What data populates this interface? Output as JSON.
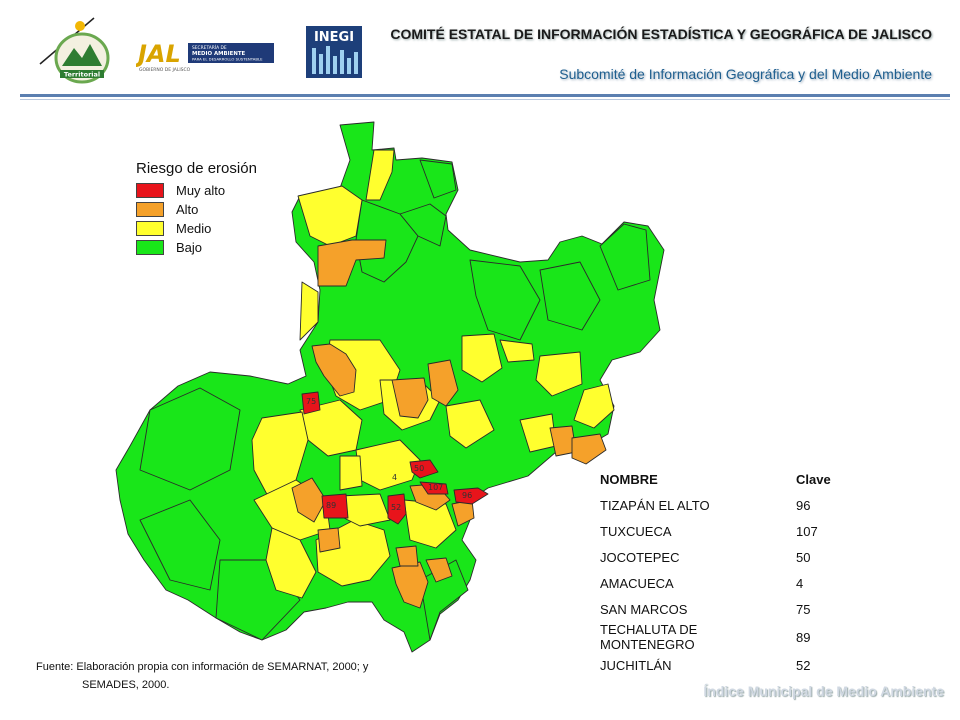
{
  "header": {
    "title": "COMITÉ ESTATAL DE INFORMACIÓN ESTADÍSTICA Y GEOGRÁFICA DE JALISCO",
    "subtitle": "Subcomité de Información Geográfica y del Medio Ambiente"
  },
  "logos": {
    "territorial_text": "Territorial",
    "jalisco_text": "JAL",
    "jalisco_caption": "GOBIERNO DE JALISCO",
    "semades_line1": "SECRETARÍA DE",
    "semades_line2": "MEDIO AMBIENTE",
    "semades_line3": "PARA EL DESARROLLO SUSTENTABLE",
    "inegi_text": "INEGI"
  },
  "legend": {
    "title": "Riesgo de erosión",
    "items": [
      {
        "label": "Muy alto",
        "color": "#e8141b"
      },
      {
        "label": "Alto",
        "color": "#f5a12a"
      },
      {
        "label": "Medio",
        "color": "#ffff2e"
      },
      {
        "label": "Bajo",
        "color": "#19e619"
      }
    ]
  },
  "map_labels": [
    "75",
    "50",
    "107",
    "96",
    "89",
    "52",
    "4"
  ],
  "table": {
    "headers": [
      "NOMBRE",
      "Clave"
    ],
    "rows": [
      [
        "TIZAPÁN EL ALTO",
        "96"
      ],
      [
        "TUXCUECA",
        "107"
      ],
      [
        "JOCOTEPEC",
        "50"
      ],
      [
        "AMACUECA",
        "4"
      ],
      [
        "SAN MARCOS",
        "75"
      ],
      [
        "TECHALUTA DE MONTENEGRO",
        "89"
      ],
      [
        "JUCHITLÁN",
        "52"
      ]
    ]
  },
  "source": {
    "line1": "Fuente: Elaboración propia con información de SEMARNAT, 2000; y",
    "line2": "SEMADES, 2000."
  },
  "footer": "Índice Municipal de Medio Ambiente"
}
